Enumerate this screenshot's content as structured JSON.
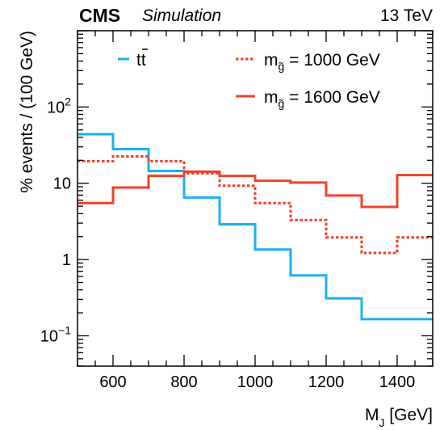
{
  "header": {
    "experiment": "CMS",
    "qualifier": "Simulation",
    "energy": "13 TeV"
  },
  "chart_data": {
    "type": "line",
    "drawstyle": "step-histogram",
    "xlabel_main": "M",
    "xlabel_sub": "J",
    "xlabel_unit": " [GeV]",
    "ylabel": "% events / (100 GeV)",
    "xlim": [
      500,
      1500
    ],
    "ylim": [
      0.04,
      1000
    ],
    "yscale": "log",
    "grid": false,
    "legend_position": "top",
    "x_ticks": [
      {
        "value": 600,
        "label": "600"
      },
      {
        "value": 800,
        "label": "800"
      },
      {
        "value": 1000,
        "label": "1000"
      },
      {
        "value": 1200,
        "label": "1200"
      },
      {
        "value": 1400,
        "label": "1400"
      }
    ],
    "y_ticks": [
      {
        "value": 0.1,
        "base": "10",
        "exp": "−1"
      },
      {
        "value": 1,
        "base": "1",
        "exp": ""
      },
      {
        "value": 10,
        "base": "10",
        "exp": ""
      },
      {
        "value": 100,
        "base": "10",
        "exp": "2"
      }
    ],
    "bin_edges": [
      500,
      600,
      700,
      800,
      900,
      1000,
      1100,
      1200,
      1300,
      1400,
      1500
    ],
    "series": [
      {
        "key": "ttbar",
        "name": "tt",
        "name_bar_over_second": true,
        "color": "#1cb0f0",
        "dash": "solid",
        "values": [
          44,
          28,
          14.5,
          6.5,
          2.9,
          1.35,
          0.62,
          0.31,
          0.165,
          0.165
        ]
      },
      {
        "key": "gluino1000",
        "name": "m",
        "name_sub": "g̃",
        "name_rest": " = 1000 GeV",
        "color": "#f0412a",
        "dash": "dotted",
        "values": [
          19.5,
          22.5,
          19.5,
          13.5,
          9.3,
          5.5,
          3.3,
          1.95,
          1.22,
          1.95
        ]
      },
      {
        "key": "gluino1600",
        "name": "m",
        "name_sub": "g̃",
        "name_rest": " = 1600 GeV",
        "color": "#f0412a",
        "dash": "solid",
        "values": [
          5.5,
          8.8,
          12.5,
          14.2,
          12.5,
          10.8,
          10.2,
          6.9,
          4.9,
          12.8
        ]
      }
    ]
  }
}
